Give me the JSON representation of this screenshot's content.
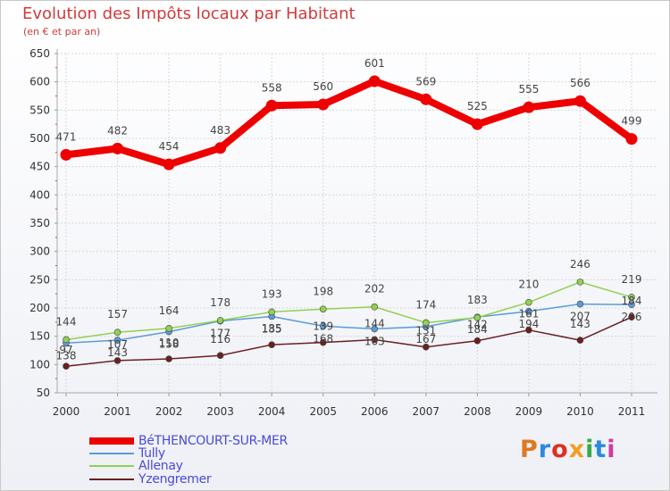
{
  "chart_data": {
    "type": "line",
    "title": "Evolution des Impôts locaux par Habitant",
    "subtitle": "(en € et par an)",
    "categories": [
      "2000",
      "2001",
      "2002",
      "2003",
      "2004",
      "2005",
      "2006",
      "2007",
      "2008",
      "2009",
      "2010",
      "2011"
    ],
    "ylim": [
      50,
      650
    ],
    "yticks": [
      50,
      100,
      150,
      200,
      250,
      300,
      350,
      400,
      450,
      500,
      550,
      600,
      650
    ],
    "series": [
      {
        "name": "BéTHENCOURT-SUR-MER",
        "color": "#ee0000",
        "values": [
          471,
          482,
          454,
          483,
          558,
          560,
          601,
          569,
          525,
          555,
          566,
          499
        ]
      },
      {
        "name": "Tully",
        "color": "#5b9bd5",
        "values": [
          138,
          143,
          158,
          177,
          185,
          168,
          163,
          167,
          184,
          194,
          207,
          206
        ]
      },
      {
        "name": "Allenay",
        "color": "#92d050",
        "values": [
          144,
          157,
          164,
          178,
          193,
          198,
          202,
          174,
          183,
          210,
          246,
          219
        ]
      },
      {
        "name": "Yzengremer",
        "color": "#6b2020",
        "values": [
          97,
          107,
          110,
          116,
          135,
          139,
          144,
          131,
          142,
          161,
          143,
          184
        ]
      }
    ]
  },
  "logo": {
    "text": "Proxiti",
    "colors": [
      "#e07820",
      "#2a8adf",
      "#e03020",
      "#f0a020",
      "#3aa84a",
      "#2a8adf",
      "#d23aa0"
    ]
  }
}
